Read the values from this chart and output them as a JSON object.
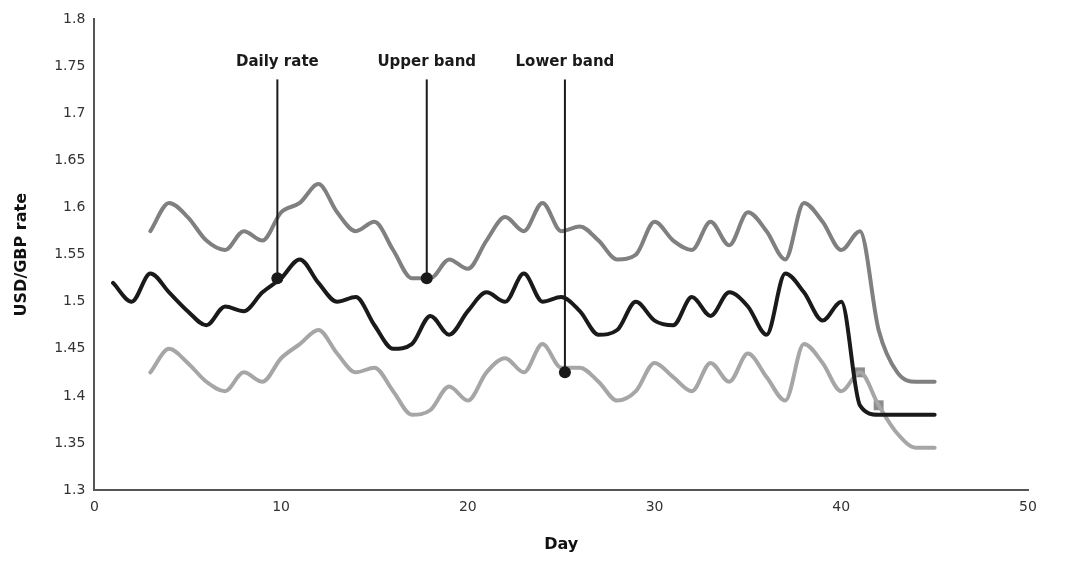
{
  "chart_data": {
    "type": "line",
    "xlabel": "Day",
    "ylabel": "USD/GBP rate",
    "xlim": [
      0,
      50
    ],
    "xticks": [
      0,
      10,
      20,
      30,
      40,
      50
    ],
    "ylim": [
      1.3,
      1.8
    ],
    "yticks": [
      1.3,
      1.35,
      1.4,
      1.45,
      1.5,
      1.55,
      1.6,
      1.65,
      1.7,
      1.75,
      1.8
    ],
    "grid": false,
    "legend": false,
    "marker": "none",
    "line_style": "solid",
    "series": [
      {
        "color": "#808080",
        "x": [
          3,
          4,
          5,
          6,
          7,
          8,
          9,
          10,
          11,
          12,
          13,
          14,
          15,
          16,
          17,
          18,
          19,
          20,
          21,
          22,
          23,
          24,
          25,
          26,
          27,
          28,
          29,
          30,
          31,
          32,
          33,
          34,
          35,
          36,
          37,
          38,
          39,
          40,
          41,
          42,
          43,
          44,
          45
        ],
        "values": [
          1.575,
          1.605,
          1.59,
          1.565,
          1.555,
          1.575,
          1.565,
          1.595,
          1.605,
          1.625,
          1.595,
          1.575,
          1.585,
          1.555,
          1.525,
          1.525,
          1.545,
          1.535,
          1.565,
          1.59,
          1.575,
          1.605,
          1.575,
          1.58,
          1.565,
          1.545,
          1.55,
          1.585,
          1.565,
          1.555,
          1.585,
          1.56,
          1.595,
          1.575,
          1.545,
          1.605,
          1.585,
          1.555,
          1.575,
          1.47,
          1.425,
          1.415,
          1.415
        ]
      },
      {
        "color": "#1a1a1a",
        "x": [
          1,
          2,
          3,
          4,
          5,
          6,
          7,
          8,
          9,
          10,
          11,
          12,
          13,
          14,
          15,
          16,
          17,
          18,
          19,
          20,
          21,
          22,
          23,
          24,
          25,
          26,
          27,
          28,
          29,
          30,
          31,
          32,
          33,
          34,
          35,
          36,
          37,
          38,
          39,
          40,
          41,
          42,
          43,
          44,
          45
        ],
        "values": [
          1.52,
          1.5,
          1.53,
          1.51,
          1.49,
          1.475,
          1.495,
          1.49,
          1.51,
          1.525,
          1.545,
          1.52,
          1.5,
          1.505,
          1.475,
          1.45,
          1.455,
          1.485,
          1.465,
          1.49,
          1.51,
          1.5,
          1.53,
          1.5,
          1.505,
          1.49,
          1.465,
          1.47,
          1.5,
          1.48,
          1.475,
          1.505,
          1.485,
          1.51,
          1.495,
          1.465,
          1.53,
          1.51,
          1.48,
          1.5,
          1.39,
          1.38,
          1.38,
          1.38,
          1.38
        ]
      },
      {
        "color": "#a6a6a6",
        "x": [
          3,
          4,
          5,
          6,
          7,
          8,
          9,
          10,
          11,
          12,
          13,
          14,
          15,
          16,
          17,
          18,
          19,
          20,
          21,
          22,
          23,
          24,
          25,
          26,
          27,
          28,
          29,
          30,
          31,
          32,
          33,
          34,
          35,
          36,
          37,
          38,
          39,
          40,
          41,
          42,
          43,
          44,
          45
        ],
        "values": [
          1.425,
          1.45,
          1.435,
          1.415,
          1.405,
          1.425,
          1.415,
          1.44,
          1.455,
          1.47,
          1.445,
          1.425,
          1.43,
          1.405,
          1.38,
          1.385,
          1.41,
          1.395,
          1.425,
          1.44,
          1.425,
          1.455,
          1.43,
          1.43,
          1.415,
          1.395,
          1.405,
          1.435,
          1.42,
          1.405,
          1.435,
          1.415,
          1.445,
          1.42,
          1.395,
          1.455,
          1.435,
          1.405,
          1.425,
          1.39,
          1.36,
          1.345,
          1.345
        ]
      },
      {
        "type": "scatter",
        "marker": "square",
        "color": "#8c8c8c",
        "x": [
          41,
          42
        ],
        "values": [
          1.425,
          1.39
        ]
      }
    ],
    "annotations": [
      {
        "text": "Daily rate",
        "x": 9.8,
        "y": 1.525
      },
      {
        "text": "Upper band",
        "x": 17.8,
        "y": 1.525
      },
      {
        "text": "Lower band",
        "x": 25.2,
        "y": 1.425
      }
    ]
  }
}
